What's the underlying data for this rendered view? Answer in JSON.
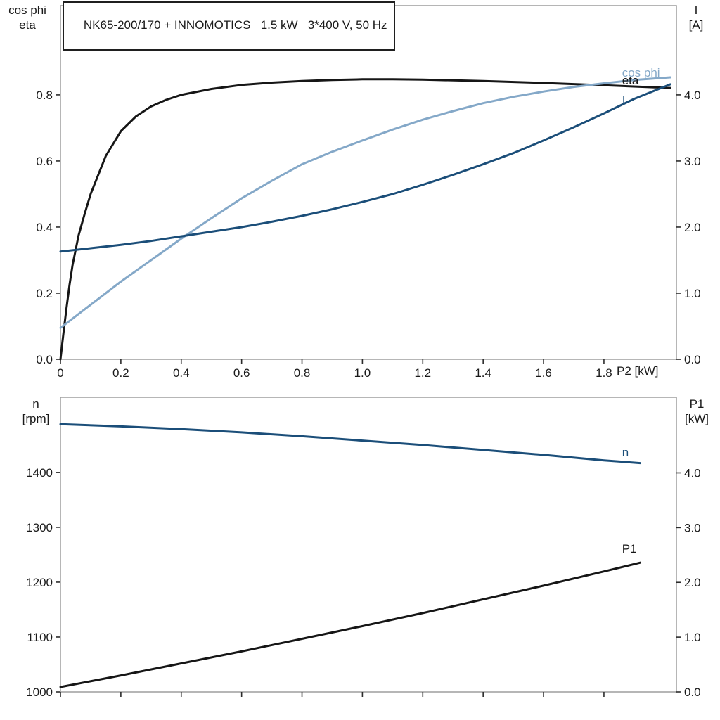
{
  "chart_data": [
    {
      "type": "line",
      "title": "NK65-200/170 + INNOMOTICS   1.5 kW   3*400 V, 50 Hz",
      "x_axis": {
        "label": "P2 [kW]",
        "min": 0,
        "max": 2.04,
        "ticks": [
          0,
          0.2,
          0.4,
          0.6,
          0.8,
          1.0,
          1.2,
          1.4,
          1.6,
          1.8
        ],
        "tick_labels": [
          "0",
          "0.2",
          "0.4",
          "0.6",
          "0.8",
          "1.0",
          "1.2",
          "1.4",
          "1.6",
          "1.8"
        ]
      },
      "y_left": {
        "label_line1": "cos phi",
        "label_line2": "eta",
        "min": 0,
        "max": 1.07,
        "ticks": [
          0.0,
          0.2,
          0.4,
          0.6,
          0.8
        ],
        "tick_labels": [
          "0.0",
          "0.2",
          "0.4",
          "0.6",
          "0.8"
        ]
      },
      "y_right": {
        "label_line1": "I",
        "label_line2": "[A]",
        "min": 0,
        "max": 5.35,
        "ticks": [
          0,
          1,
          2,
          3,
          4
        ],
        "tick_labels": [
          "0.0",
          "1.0",
          "2.0",
          "3.0",
          "4.0"
        ]
      },
      "series": [
        {
          "name": "eta",
          "axis": "left",
          "color": "#161616",
          "x": [
            0,
            0.01,
            0.02,
            0.03,
            0.04,
            0.06,
            0.08,
            0.1,
            0.15,
            0.2,
            0.25,
            0.3,
            0.35,
            0.4,
            0.5,
            0.6,
            0.7,
            0.8,
            0.9,
            1.0,
            1.1,
            1.2,
            1.4,
            1.6,
            1.8,
            2.02
          ],
          "y": [
            0,
            0.08,
            0.155,
            0.225,
            0.285,
            0.375,
            0.44,
            0.5,
            0.615,
            0.69,
            0.735,
            0.765,
            0.785,
            0.8,
            0.818,
            0.83,
            0.837,
            0.842,
            0.845,
            0.847,
            0.847,
            0.846,
            0.842,
            0.836,
            0.829,
            0.821
          ]
        },
        {
          "name": "cos phi",
          "axis": "left",
          "color": "#84a8c8",
          "x": [
            0,
            0.1,
            0.2,
            0.3,
            0.4,
            0.5,
            0.6,
            0.7,
            0.8,
            0.9,
            1.0,
            1.1,
            1.2,
            1.3,
            1.4,
            1.5,
            1.6,
            1.7,
            1.8,
            1.9,
            2.02
          ],
          "y": [
            0.095,
            0.165,
            0.235,
            0.3,
            0.365,
            0.427,
            0.487,
            0.54,
            0.59,
            0.628,
            0.662,
            0.695,
            0.725,
            0.751,
            0.775,
            0.794,
            0.81,
            0.824,
            0.835,
            0.845,
            0.853
          ]
        },
        {
          "name": "I",
          "axis": "right",
          "color": "#1b4e79",
          "x": [
            0,
            0.1,
            0.2,
            0.3,
            0.4,
            0.5,
            0.6,
            0.7,
            0.8,
            0.9,
            1.0,
            1.1,
            1.2,
            1.3,
            1.4,
            1.5,
            1.6,
            1.7,
            1.8,
            1.9,
            2.02
          ],
          "y": [
            1.63,
            1.68,
            1.73,
            1.79,
            1.86,
            1.93,
            2.0,
            2.08,
            2.17,
            2.27,
            2.38,
            2.5,
            2.64,
            2.79,
            2.95,
            3.12,
            3.31,
            3.51,
            3.72,
            3.94,
            4.16
          ]
        }
      ],
      "annotations": [
        {
          "text": "cos phi",
          "x": 1.86,
          "y": 0.868,
          "axis": "left",
          "color": "#84a8c8"
        },
        {
          "text": "eta",
          "x": 1.86,
          "y": 0.845,
          "axis": "left",
          "color": "#161616"
        },
        {
          "text": "I",
          "x": 1.86,
          "y": 3.92,
          "axis": "right",
          "color": "#1b4e79"
        }
      ]
    },
    {
      "type": "line",
      "title": "",
      "x_axis": {
        "label": "",
        "min": 0,
        "max": 2.04,
        "ticks": [
          0,
          0.2,
          0.4,
          0.6,
          0.8,
          1.0,
          1.2,
          1.4,
          1.6,
          1.8
        ],
        "tick_labels": [
          "",
          "",
          "",
          "",
          "",
          "",
          "",
          "",
          "",
          ""
        ]
      },
      "y_left": {
        "label_line1": "n",
        "label_line2": "[rpm]",
        "min": 1000,
        "max": 1537,
        "ticks": [
          1000,
          1100,
          1200,
          1300,
          1400
        ],
        "tick_labels": [
          "1000",
          "1100",
          "1200",
          "1300",
          "1400"
        ]
      },
      "y_right": {
        "label_line1": "P1",
        "label_line2": "[kW]",
        "min": 0,
        "max": 5.38,
        "ticks": [
          0,
          1,
          2,
          3,
          4
        ],
        "tick_labels": [
          "0.0",
          "1.0",
          "2.0",
          "3.0",
          "4.0"
        ]
      },
      "series": [
        {
          "name": "n",
          "axis": "left",
          "color": "#1b4e79",
          "x": [
            0,
            0.2,
            0.4,
            0.6,
            0.8,
            1.0,
            1.2,
            1.4,
            1.6,
            1.8,
            1.92
          ],
          "y": [
            1488,
            1484,
            1479,
            1473,
            1466,
            1458,
            1450,
            1441,
            1432,
            1422,
            1417
          ]
        },
        {
          "name": "P1",
          "axis": "right",
          "color": "#161616",
          "x": [
            0,
            0.2,
            0.4,
            0.6,
            0.8,
            1.0,
            1.2,
            1.4,
            1.6,
            1.8,
            1.92
          ],
          "y": [
            0.09,
            0.3,
            0.52,
            0.74,
            0.97,
            1.2,
            1.44,
            1.69,
            1.94,
            2.2,
            2.36
          ]
        }
      ],
      "annotations": [
        {
          "text": "n",
          "x": 1.86,
          "y": 1437,
          "axis": "left",
          "color": "#1b4e79"
        },
        {
          "text": "P1",
          "x": 1.86,
          "y": 2.62,
          "axis": "right",
          "color": "#161616"
        }
      ]
    }
  ]
}
